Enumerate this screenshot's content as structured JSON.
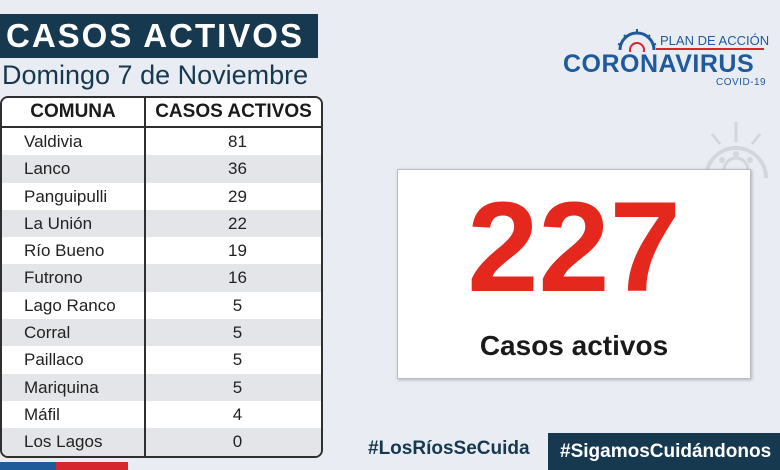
{
  "header": {
    "title": "CASOS ACTIVOS",
    "date": "Domingo 7 de Noviembre"
  },
  "table": {
    "headers": [
      "COMUNA",
      "CASOS ACTIVOS"
    ],
    "rows": [
      {
        "comuna": "Valdivia",
        "casos": "81"
      },
      {
        "comuna": "Lanco",
        "casos": "36"
      },
      {
        "comuna": "Panguipulli",
        "casos": "29"
      },
      {
        "comuna": "La Unión",
        "casos": "22"
      },
      {
        "comuna": "Río Bueno",
        "casos": "19"
      },
      {
        "comuna": "Futrono",
        "casos": "16"
      },
      {
        "comuna": "Lago Ranco",
        "casos": "5"
      },
      {
        "comuna": "Corral",
        "casos": "5"
      },
      {
        "comuna": "Paillaco",
        "casos": "5"
      },
      {
        "comuna": "Mariquina",
        "casos": "5"
      },
      {
        "comuna": "Máfil",
        "casos": "4"
      },
      {
        "comuna": "Los Lagos",
        "casos": "0"
      }
    ]
  },
  "logo": {
    "small": "PLAN DE ACCIÓN",
    "main": "CORONAVIRUS",
    "sub": "COVID-19"
  },
  "total": {
    "number": "227",
    "label": "Casos activos"
  },
  "hashtags": {
    "first": "#LosRíosSeCuida",
    "second": "#SigamosCuidándonos"
  },
  "colors": {
    "navy": "#16394f",
    "red": "#e5281d",
    "brand_blue": "#1f5a9b",
    "background": "#e9ecf2"
  }
}
